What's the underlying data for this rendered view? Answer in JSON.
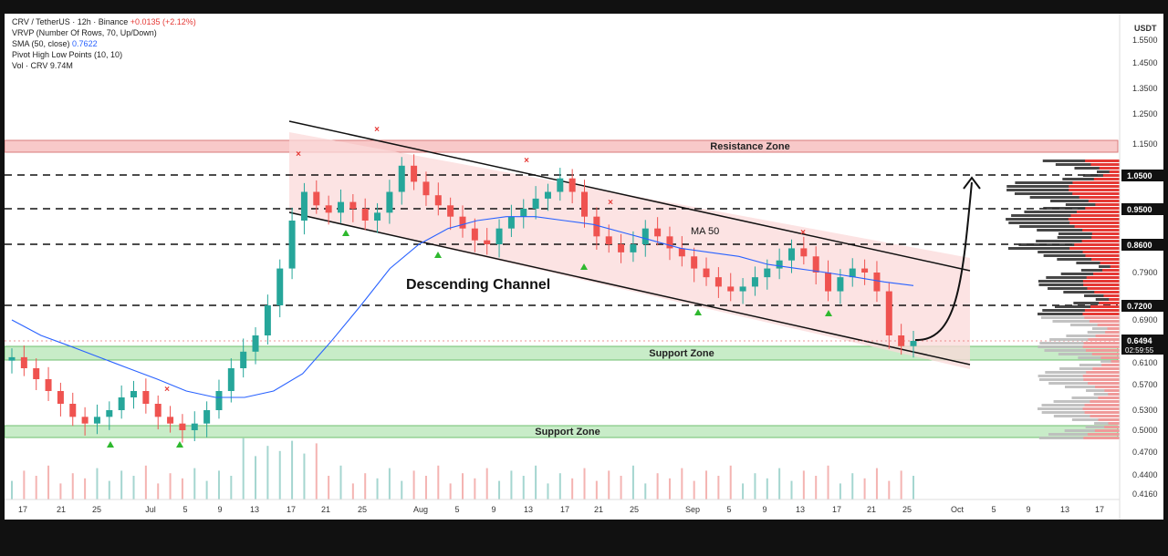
{
  "legend": {
    "symbol": "CRV / TetherUS · 12h · Binance",
    "change": "+0.0135 (+2.12%)",
    "vrvp": "VRVP (Number Of Rows, 70, Up/Down)",
    "sma_label": "SMA (50, close)",
    "sma_value": "0.7622",
    "pivot": "Pivot High Low Points (10, 10)",
    "vol": "Vol · CRV  9.74M"
  },
  "axis": {
    "currency": "USDT",
    "price_ticks": [
      "1.5500",
      "1.4500",
      "1.3500",
      "1.2500",
      "1.1500",
      "1.0500",
      "0.9500",
      "0.8600",
      "0.7900",
      "0.7200",
      "0.6900",
      "0.6494",
      "0.6100",
      "0.5700",
      "0.5300",
      "0.5000",
      "0.4700",
      "0.4400",
      "0.4160"
    ],
    "date_ticks": [
      "17",
      "21",
      "25",
      "Jul",
      "5",
      "9",
      "13",
      "17",
      "21",
      "25",
      "Aug",
      "5",
      "9",
      "13",
      "17",
      "21",
      "25",
      "Sep",
      "5",
      "9",
      "13",
      "17",
      "21",
      "25",
      "Oct",
      "5",
      "9",
      "13",
      "17"
    ],
    "current_price": "0.6494",
    "countdown": "02:59:55"
  },
  "price_labels": [
    "1.0500",
    "0.9500",
    "0.8600",
    "0.7200"
  ],
  "annotations": {
    "resistance": "Resistance Zone",
    "support_upper": "Support Zone",
    "support_lower": "Support Zone",
    "channel": "Descending Channel",
    "ma": "MA 50"
  },
  "colors": {
    "up": "#26a69a",
    "down": "#ef5350",
    "sma": "#2962ff",
    "resistance": "#f8c9c9",
    "support": "#c8ecc8",
    "channel": "#fbd9d9"
  },
  "chart_data": {
    "type": "candlestick",
    "title": "CRV / TetherUS · 12h · Binance",
    "ylabel": "USDT",
    "ylim": [
      0.4,
      1.58
    ],
    "levels": [
      1.05,
      0.95,
      0.86,
      0.72
    ],
    "resistance_zone": [
      1.12,
      1.15
    ],
    "support_zones": [
      [
        0.615,
        0.635
      ],
      [
        0.48,
        0.505
      ]
    ],
    "close_series": [
      0.62,
      0.6,
      0.58,
      0.56,
      0.54,
      0.52,
      0.51,
      0.52,
      0.53,
      0.55,
      0.56,
      0.54,
      0.52,
      0.51,
      0.5,
      0.51,
      0.53,
      0.56,
      0.6,
      0.63,
      0.66,
      0.72,
      0.8,
      0.92,
      1.0,
      0.96,
      0.94,
      0.97,
      0.95,
      0.92,
      0.94,
      1.0,
      1.08,
      1.03,
      0.99,
      0.96,
      0.93,
      0.9,
      0.87,
      0.86,
      0.9,
      0.93,
      0.95,
      0.98,
      1.0,
      1.04,
      1.0,
      0.93,
      0.88,
      0.86,
      0.84,
      0.86,
      0.9,
      0.88,
      0.85,
      0.83,
      0.8,
      0.78,
      0.76,
      0.75,
      0.76,
      0.78,
      0.8,
      0.82,
      0.85,
      0.83,
      0.79,
      0.75,
      0.78,
      0.8,
      0.79,
      0.75,
      0.66,
      0.64,
      0.6494
    ],
    "sma50_series": [
      0.69,
      0.66,
      0.64,
      0.62,
      0.6,
      0.58,
      0.56,
      0.55,
      0.55,
      0.56,
      0.59,
      0.65,
      0.72,
      0.8,
      0.86,
      0.9,
      0.92,
      0.93,
      0.93,
      0.92,
      0.91,
      0.89,
      0.87,
      0.85,
      0.84,
      0.83,
      0.81,
      0.8,
      0.79,
      0.78,
      0.77,
      0.7622
    ]
  }
}
